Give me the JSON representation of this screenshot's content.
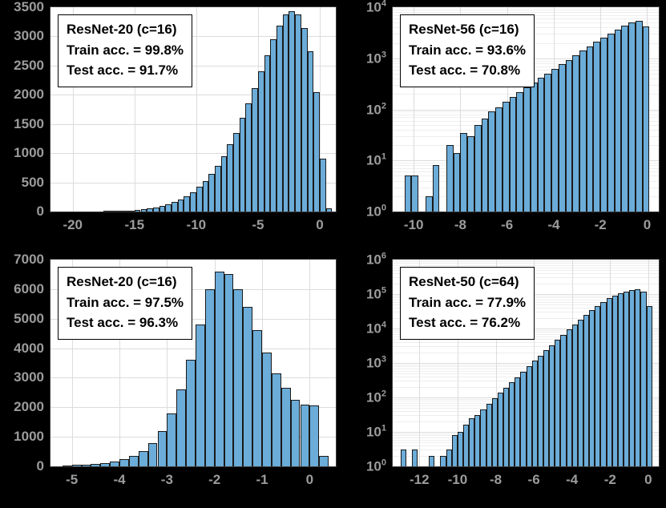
{
  "colors": {
    "page_bg": "#000000",
    "plot_bg": "#ffffff",
    "axis_border": "#3a3a3a",
    "bar_fill": "#6BACD8",
    "bar_edge": "#1a1a1a",
    "grid": "#dcdcdc",
    "grid_minor": "#eeeeee",
    "tick_label": "#9c9c9c",
    "legend_text": "#000000",
    "legend_border": "#000000"
  },
  "chart_data": [
    {
      "type": "bar",
      "panel": "top-left",
      "legend": [
        "ResNet-20 (c=16)",
        "Train acc. = 99.8%",
        "Test acc. = 91.7%"
      ],
      "yscale": "linear",
      "xlim": [
        -21.8,
        1.3
      ],
      "ylim": [
        0,
        3500
      ],
      "xticks": [
        -20,
        -15,
        -10,
        -5,
        0
      ],
      "yticks": [
        0,
        500,
        1000,
        1500,
        2000,
        2500,
        3000,
        3500
      ],
      "bin_start": -17.5,
      "bin_width": 0.5,
      "counts": [
        5,
        8,
        10,
        14,
        20,
        28,
        40,
        55,
        75,
        95,
        125,
        160,
        205,
        260,
        330,
        420,
        520,
        640,
        780,
        950,
        1150,
        1350,
        1600,
        1850,
        2120,
        2400,
        2680,
        2950,
        3180,
        3380,
        3430,
        3380,
        3150,
        2750,
        2050,
        900,
        60
      ]
    },
    {
      "type": "bar",
      "panel": "top-right",
      "legend": [
        "ResNet-56 (c=16)",
        "Train acc. = 93.6%",
        "Test acc. = 70.8%"
      ],
      "yscale": "log",
      "xlim": [
        -10.9,
        0.5
      ],
      "ylim": [
        1,
        10000
      ],
      "xticks": [
        -10,
        -8,
        -6,
        -4,
        -2,
        0
      ],
      "yticks": [
        0,
        1,
        2,
        3,
        4
      ],
      "bin_start": -10.4,
      "bin_width": 0.3,
      "counts": [
        5,
        5,
        0,
        2,
        8,
        0,
        20,
        14,
        35,
        30,
        50,
        65,
        90,
        110,
        140,
        175,
        220,
        270,
        330,
        410,
        500,
        620,
        760,
        930,
        1150,
        1400,
        1700,
        2100,
        2500,
        3000,
        3600,
        4300,
        5000,
        5500,
        4200
      ]
    },
    {
      "type": "bar",
      "panel": "bottom-left",
      "legend": [
        "ResNet-20 (c=16)",
        "Train acc. = 97.5%",
        "Test acc. = 96.3%"
      ],
      "yscale": "linear",
      "xlim": [
        -5.45,
        0.55
      ],
      "ylim": [
        0,
        7000
      ],
      "xticks": [
        -5,
        -4,
        -3,
        -2,
        -1,
        0
      ],
      "yticks": [
        0,
        1000,
        2000,
        3000,
        4000,
        5000,
        6000,
        7000
      ],
      "bin_start": -5.2,
      "bin_width": 0.2,
      "counts": [
        30,
        45,
        60,
        85,
        120,
        160,
        250,
        360,
        520,
        800,
        1200,
        1800,
        2600,
        3600,
        4800,
        6000,
        6600,
        6500,
        6000,
        5400,
        4600,
        3850,
        3150,
        2650,
        2250,
        2100,
        2050,
        350
      ]
    },
    {
      "type": "bar",
      "panel": "bottom-right",
      "legend": [
        "ResNet-50 (c=64)",
        "Train acc. = 77.9%",
        "Test acc. = 76.2%"
      ],
      "yscale": "log",
      "xlim": [
        -13.4,
        0.55
      ],
      "ylim": [
        1,
        1000000
      ],
      "xticks": [
        -12,
        -10,
        -8,
        -6,
        -4,
        -2,
        0
      ],
      "yticks": [
        0,
        1,
        2,
        3,
        4,
        5,
        6
      ],
      "bin_start": -13.0,
      "bin_width": 0.3,
      "counts": [
        3,
        0,
        3,
        0,
        0,
        2,
        0,
        2,
        3,
        8,
        10,
        16,
        25,
        30,
        45,
        65,
        95,
        135,
        190,
        270,
        390,
        560,
        800,
        1150,
        1650,
        2350,
        3300,
        4700,
        6600,
        9300,
        13000,
        18000,
        25000,
        34000,
        46000,
        60000,
        76000,
        92000,
        108000,
        120000,
        130000,
        135000,
        120000,
        45000
      ]
    }
  ]
}
